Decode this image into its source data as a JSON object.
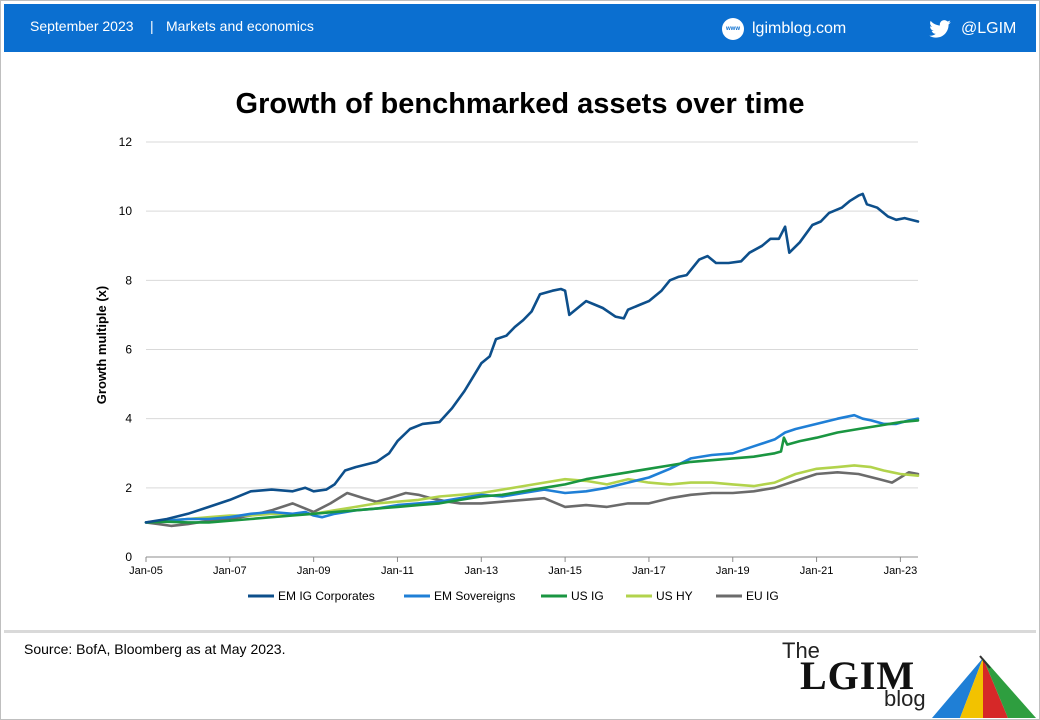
{
  "header": {
    "date": "September 2023",
    "separator": "|",
    "section": "Markets and economics",
    "site_icon_text": "www",
    "site": "lgimblog.com",
    "twitter": "@LGIM"
  },
  "footer": {
    "source": "Source: BofA, Bloomberg as at May 2023.",
    "logo_the": "The",
    "logo_lgim": "LGIM",
    "logo_blog": "blog"
  },
  "colors": {
    "header_bg": "#0b6fd0",
    "em_ig_corporates": "#0d4f8b",
    "em_sovereigns": "#1f7fd6",
    "us_ig": "#1a9641",
    "us_hy": "#b2d34c",
    "eu_ig": "#6b6b6b"
  },
  "chart_data": {
    "type": "line",
    "title": "Growth of benchmarked assets over time",
    "xlabel": "",
    "ylabel": "Growth multiple (x)",
    "xlim": [
      2005.0,
      2023.42
    ],
    "ylim": [
      0,
      12
    ],
    "yticks": [
      0,
      2,
      4,
      6,
      8,
      10,
      12
    ],
    "xticks": [
      {
        "x": 2005,
        "label": "Jan-05"
      },
      {
        "x": 2007,
        "label": "Jan-07"
      },
      {
        "x": 2009,
        "label": "Jan-09"
      },
      {
        "x": 2011,
        "label": "Jan-11"
      },
      {
        "x": 2013,
        "label": "Jan-13"
      },
      {
        "x": 2015,
        "label": "Jan-15"
      },
      {
        "x": 2017,
        "label": "Jan-17"
      },
      {
        "x": 2019,
        "label": "Jan-19"
      },
      {
        "x": 2021,
        "label": "Jan-21"
      },
      {
        "x": 2023,
        "label": "Jan-23"
      }
    ],
    "grid": "horizontal",
    "legend_position": "bottom",
    "series": [
      {
        "name": "EM IG Corporates",
        "color": "#0d4f8b",
        "points": [
          [
            2005,
            1.0
          ],
          [
            2005.5,
            1.1
          ],
          [
            2006,
            1.25
          ],
          [
            2006.5,
            1.45
          ],
          [
            2007,
            1.65
          ],
          [
            2007.5,
            1.9
          ],
          [
            2008,
            1.95
          ],
          [
            2008.5,
            1.9
          ],
          [
            2008.8,
            2.0
          ],
          [
            2009,
            1.9
          ],
          [
            2009.3,
            1.95
          ],
          [
            2009.5,
            2.1
          ],
          [
            2009.75,
            2.5
          ],
          [
            2010,
            2.6
          ],
          [
            2010.5,
            2.75
          ],
          [
            2010.8,
            3.0
          ],
          [
            2011,
            3.35
          ],
          [
            2011.3,
            3.7
          ],
          [
            2011.6,
            3.85
          ],
          [
            2012,
            3.9
          ],
          [
            2012.3,
            4.3
          ],
          [
            2012.6,
            4.8
          ],
          [
            2012.8,
            5.2
          ],
          [
            2013,
            5.6
          ],
          [
            2013.2,
            5.8
          ],
          [
            2013.35,
            6.3
          ],
          [
            2013.6,
            6.4
          ],
          [
            2013.8,
            6.65
          ],
          [
            2014,
            6.85
          ],
          [
            2014.2,
            7.1
          ],
          [
            2014.4,
            7.6
          ],
          [
            2014.7,
            7.7
          ],
          [
            2014.9,
            7.75
          ],
          [
            2015,
            7.7
          ],
          [
            2015.1,
            7.0
          ],
          [
            2015.3,
            7.2
          ],
          [
            2015.5,
            7.4
          ],
          [
            2015.7,
            7.3
          ],
          [
            2015.9,
            7.2
          ],
          [
            2016.2,
            6.95
          ],
          [
            2016.4,
            6.9
          ],
          [
            2016.5,
            7.15
          ],
          [
            2016.8,
            7.3
          ],
          [
            2017,
            7.4
          ],
          [
            2017.3,
            7.7
          ],
          [
            2017.5,
            8.0
          ],
          [
            2017.7,
            8.1
          ],
          [
            2017.9,
            8.15
          ],
          [
            2018.2,
            8.6
          ],
          [
            2018.4,
            8.7
          ],
          [
            2018.6,
            8.5
          ],
          [
            2018.9,
            8.5
          ],
          [
            2019.2,
            8.55
          ],
          [
            2019.4,
            8.8
          ],
          [
            2019.7,
            9.0
          ],
          [
            2019.9,
            9.2
          ],
          [
            2020.1,
            9.2
          ],
          [
            2020.25,
            9.55
          ],
          [
            2020.35,
            8.8
          ],
          [
            2020.6,
            9.1
          ],
          [
            2020.9,
            9.6
          ],
          [
            2021.1,
            9.7
          ],
          [
            2021.3,
            9.95
          ],
          [
            2021.6,
            10.1
          ],
          [
            2021.8,
            10.3
          ],
          [
            2022.0,
            10.45
          ],
          [
            2022.1,
            10.5
          ],
          [
            2022.2,
            10.2
          ],
          [
            2022.45,
            10.1
          ],
          [
            2022.7,
            9.85
          ],
          [
            2022.9,
            9.75
          ],
          [
            2023.1,
            9.8
          ],
          [
            2023.42,
            9.7
          ]
        ]
      },
      {
        "name": "EM Sovereigns",
        "color": "#1f7fd6",
        "points": [
          [
            2005,
            1.0
          ],
          [
            2005.5,
            1.05
          ],
          [
            2006,
            1.1
          ],
          [
            2006.5,
            1.1
          ],
          [
            2007,
            1.15
          ],
          [
            2007.5,
            1.25
          ],
          [
            2008,
            1.3
          ],
          [
            2008.5,
            1.25
          ],
          [
            2008.8,
            1.3
          ],
          [
            2009,
            1.2
          ],
          [
            2009.2,
            1.15
          ],
          [
            2009.5,
            1.25
          ],
          [
            2010,
            1.35
          ],
          [
            2010.5,
            1.4
          ],
          [
            2011,
            1.5
          ],
          [
            2011.5,
            1.55
          ],
          [
            2012,
            1.6
          ],
          [
            2012.5,
            1.7
          ],
          [
            2013,
            1.8
          ],
          [
            2013.5,
            1.75
          ],
          [
            2014,
            1.85
          ],
          [
            2014.5,
            1.95
          ],
          [
            2015,
            1.85
          ],
          [
            2015.5,
            1.9
          ],
          [
            2016,
            2.0
          ],
          [
            2016.5,
            2.15
          ],
          [
            2017,
            2.3
          ],
          [
            2017.5,
            2.55
          ],
          [
            2018,
            2.85
          ],
          [
            2018.5,
            2.95
          ],
          [
            2019,
            3.0
          ],
          [
            2019.5,
            3.2
          ],
          [
            2020,
            3.4
          ],
          [
            2020.25,
            3.6
          ],
          [
            2020.5,
            3.7
          ],
          [
            2021,
            3.85
          ],
          [
            2021.5,
            4.0
          ],
          [
            2021.9,
            4.1
          ],
          [
            2022.1,
            4.0
          ],
          [
            2022.3,
            3.95
          ],
          [
            2022.6,
            3.85
          ],
          [
            2022.9,
            3.85
          ],
          [
            2023.2,
            3.95
          ],
          [
            2023.42,
            4.0
          ]
        ]
      },
      {
        "name": "US IG",
        "color": "#1a9641",
        "points": [
          [
            2005,
            1.0
          ],
          [
            2005.5,
            1.02
          ],
          [
            2006,
            1.0
          ],
          [
            2006.5,
            1.0
          ],
          [
            2007,
            1.05
          ],
          [
            2007.5,
            1.1
          ],
          [
            2008,
            1.15
          ],
          [
            2008.5,
            1.2
          ],
          [
            2009,
            1.25
          ],
          [
            2009.5,
            1.3
          ],
          [
            2010,
            1.35
          ],
          [
            2010.5,
            1.4
          ],
          [
            2011,
            1.45
          ],
          [
            2011.5,
            1.5
          ],
          [
            2012,
            1.55
          ],
          [
            2012.5,
            1.65
          ],
          [
            2013,
            1.75
          ],
          [
            2013.5,
            1.8
          ],
          [
            2014,
            1.9
          ],
          [
            2014.5,
            2.0
          ],
          [
            2015,
            2.1
          ],
          [
            2015.5,
            2.25
          ],
          [
            2016,
            2.35
          ],
          [
            2016.5,
            2.45
          ],
          [
            2017,
            2.55
          ],
          [
            2017.5,
            2.65
          ],
          [
            2018,
            2.75
          ],
          [
            2018.5,
            2.8
          ],
          [
            2019,
            2.85
          ],
          [
            2019.5,
            2.9
          ],
          [
            2020,
            3.0
          ],
          [
            2020.15,
            3.05
          ],
          [
            2020.22,
            3.45
          ],
          [
            2020.3,
            3.25
          ],
          [
            2020.6,
            3.35
          ],
          [
            2021,
            3.45
          ],
          [
            2021.5,
            3.6
          ],
          [
            2022,
            3.7
          ],
          [
            2022.5,
            3.8
          ],
          [
            2023,
            3.9
          ],
          [
            2023.42,
            3.95
          ]
        ]
      },
      {
        "name": "US HY",
        "color": "#b2d34c",
        "points": [
          [
            2005,
            1.0
          ],
          [
            2005.5,
            1.05
          ],
          [
            2006,
            1.1
          ],
          [
            2006.5,
            1.15
          ],
          [
            2007,
            1.2
          ],
          [
            2007.5,
            1.2
          ],
          [
            2008,
            1.25
          ],
          [
            2008.5,
            1.25
          ],
          [
            2009,
            1.25
          ],
          [
            2009.5,
            1.35
          ],
          [
            2010,
            1.45
          ],
          [
            2010.5,
            1.55
          ],
          [
            2011,
            1.6
          ],
          [
            2011.5,
            1.65
          ],
          [
            2012,
            1.75
          ],
          [
            2012.5,
            1.8
          ],
          [
            2013,
            1.85
          ],
          [
            2013.5,
            1.95
          ],
          [
            2014,
            2.05
          ],
          [
            2014.5,
            2.15
          ],
          [
            2015,
            2.25
          ],
          [
            2015.5,
            2.2
          ],
          [
            2016,
            2.1
          ],
          [
            2016.5,
            2.25
          ],
          [
            2017,
            2.15
          ],
          [
            2017.5,
            2.1
          ],
          [
            2018,
            2.15
          ],
          [
            2018.5,
            2.15
          ],
          [
            2019,
            2.1
          ],
          [
            2019.5,
            2.05
          ],
          [
            2020,
            2.15
          ],
          [
            2020.5,
            2.4
          ],
          [
            2021,
            2.55
          ],
          [
            2021.5,
            2.6
          ],
          [
            2021.9,
            2.65
          ],
          [
            2022.3,
            2.6
          ],
          [
            2022.6,
            2.5
          ],
          [
            2023,
            2.4
          ],
          [
            2023.42,
            2.35
          ]
        ]
      },
      {
        "name": "EU IG",
        "color": "#6b6b6b",
        "points": [
          [
            2005,
            1.0
          ],
          [
            2005.3,
            0.95
          ],
          [
            2005.6,
            0.9
          ],
          [
            2006,
            0.95
          ],
          [
            2006.5,
            1.05
          ],
          [
            2007,
            1.1
          ],
          [
            2007.5,
            1.2
          ],
          [
            2008,
            1.35
          ],
          [
            2008.5,
            1.55
          ],
          [
            2008.8,
            1.4
          ],
          [
            2009,
            1.3
          ],
          [
            2009.4,
            1.55
          ],
          [
            2009.8,
            1.85
          ],
          [
            2010.2,
            1.7
          ],
          [
            2010.5,
            1.6
          ],
          [
            2010.8,
            1.7
          ],
          [
            2011.2,
            1.85
          ],
          [
            2011.5,
            1.8
          ],
          [
            2011.8,
            1.7
          ],
          [
            2012.2,
            1.6
          ],
          [
            2012.5,
            1.55
          ],
          [
            2013,
            1.55
          ],
          [
            2013.5,
            1.6
          ],
          [
            2014,
            1.65
          ],
          [
            2014.5,
            1.7
          ],
          [
            2015,
            1.45
          ],
          [
            2015.5,
            1.5
          ],
          [
            2016,
            1.45
          ],
          [
            2016.5,
            1.55
          ],
          [
            2017,
            1.55
          ],
          [
            2017.5,
            1.7
          ],
          [
            2018,
            1.8
          ],
          [
            2018.5,
            1.85
          ],
          [
            2019,
            1.85
          ],
          [
            2019.5,
            1.9
          ],
          [
            2020,
            2.0
          ],
          [
            2020.5,
            2.2
          ],
          [
            2021,
            2.4
          ],
          [
            2021.5,
            2.45
          ],
          [
            2022,
            2.4
          ],
          [
            2022.5,
            2.25
          ],
          [
            2022.8,
            2.15
          ],
          [
            2023,
            2.3
          ],
          [
            2023.2,
            2.45
          ],
          [
            2023.42,
            2.4
          ]
        ]
      }
    ]
  }
}
